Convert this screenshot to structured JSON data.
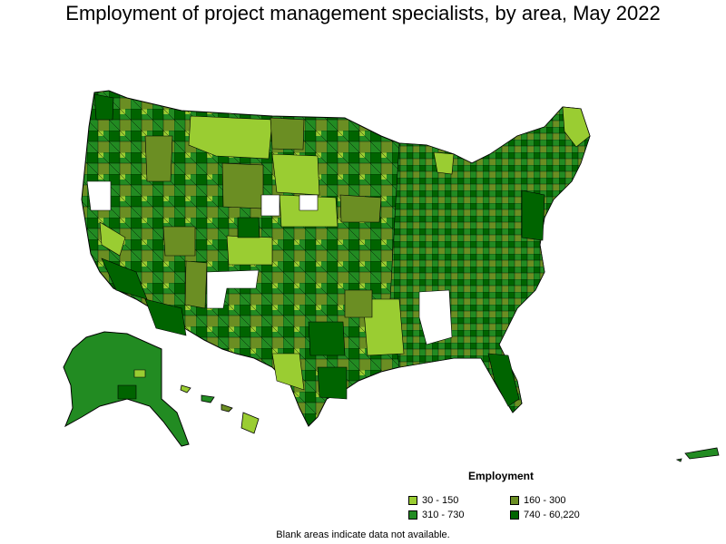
{
  "title": "Employment of project management specialists, by area, May 2022",
  "legend": {
    "title": "Employment",
    "items": [
      {
        "label": "30 - 150",
        "color": "#9acd32"
      },
      {
        "label": "160 - 300",
        "color": "#6b8e23"
      },
      {
        "label": "310 - 730",
        "color": "#228b22"
      },
      {
        "label": "740 - 60,220",
        "color": "#006400"
      }
    ]
  },
  "footnote": "Blank areas indicate data not available.",
  "colors": {
    "border": "#000000",
    "blank": "#ffffff"
  }
}
